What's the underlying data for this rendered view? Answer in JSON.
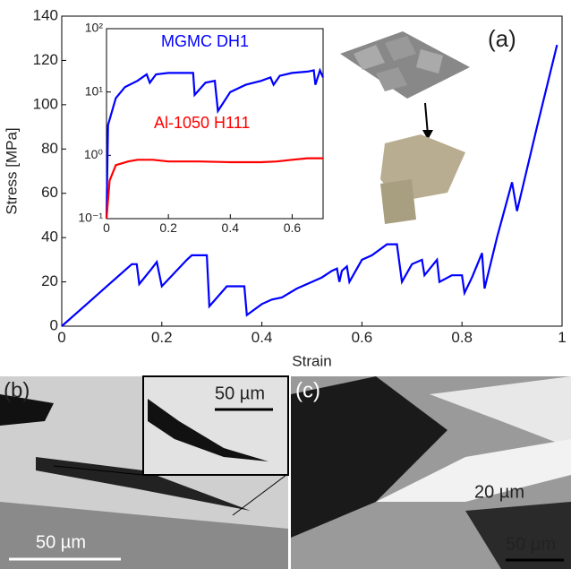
{
  "chart_data": [
    {
      "type": "line",
      "xlabel": "Strain",
      "ylabel": "Stress [MPa]",
      "annotation": "(a)",
      "xlim": [
        0,
        1
      ],
      "xticks": [
        0,
        0.2,
        0.4,
        0.6,
        0.8,
        1
      ],
      "ylim": [
        0,
        140
      ],
      "yticks": [
        0,
        20,
        40,
        60,
        80,
        100,
        120,
        140
      ],
      "series": [
        {
          "color": "#0000ff",
          "x": [
            0,
            0.05,
            0.1,
            0.14,
            0.15,
            0.155,
            0.18,
            0.19,
            0.2,
            0.25,
            0.26,
            0.29,
            0.295,
            0.33,
            0.365,
            0.37,
            0.4,
            0.42,
            0.44,
            0.47,
            0.5,
            0.52,
            0.54,
            0.55,
            0.555,
            0.56,
            0.57,
            0.575,
            0.6,
            0.62,
            0.65,
            0.67,
            0.68,
            0.7,
            0.72,
            0.725,
            0.75,
            0.755,
            0.78,
            0.8,
            0.805,
            0.82,
            0.84,
            0.845,
            0.87,
            0.9,
            0.91,
            0.95,
            0.99
          ],
          "values": [
            0,
            10,
            20,
            28,
            28,
            19,
            26,
            29,
            18,
            30,
            32,
            32,
            9,
            18,
            18,
            5,
            10,
            12,
            13,
            17,
            20,
            22,
            25,
            26,
            20,
            25,
            27,
            20,
            30,
            32,
            37,
            37,
            20,
            28,
            30,
            23,
            30,
            20,
            23,
            23,
            15,
            22,
            33,
            17,
            40,
            65,
            52,
            90,
            127
          ]
        }
      ]
    },
    {
      "type": "line",
      "log_y": true,
      "xlim": [
        0,
        0.7
      ],
      "xticks": [
        0,
        0.2,
        0.4,
        0.6
      ],
      "ylim": [
        0.1,
        100
      ],
      "yticks": [
        {
          "value": 0.1,
          "label": "10⁻¹"
        },
        {
          "value": 1,
          "label": "10⁰"
        },
        {
          "value": 10,
          "label": "10¹"
        },
        {
          "value": 100,
          "label": "10²"
        }
      ],
      "series": [
        {
          "name": "MGMC DH1",
          "color": "#0000ff",
          "x": [
            0,
            0.005,
            0.03,
            0.06,
            0.1,
            0.13,
            0.14,
            0.16,
            0.2,
            0.28,
            0.285,
            0.32,
            0.35,
            0.36,
            0.4,
            0.45,
            0.5,
            0.53,
            0.54,
            0.56,
            0.6,
            0.65,
            0.67,
            0.675,
            0.69,
            0.7
          ],
          "values": [
            0.1,
            3,
            8,
            12,
            15,
            19,
            14,
            19,
            20,
            20,
            9,
            14,
            15,
            5,
            10,
            13,
            15,
            17,
            13,
            18,
            20,
            21,
            22,
            13,
            22,
            17
          ]
        },
        {
          "name": "Al-1050 H111",
          "color": "#ff0000",
          "x": [
            0,
            0.01,
            0.03,
            0.07,
            0.1,
            0.15,
            0.2,
            0.3,
            0.4,
            0.5,
            0.55,
            0.6,
            0.65,
            0.7
          ],
          "values": [
            0.1,
            0.4,
            0.7,
            0.8,
            0.85,
            0.85,
            0.8,
            0.8,
            0.78,
            0.78,
            0.8,
            0.85,
            0.9,
            0.9
          ]
        }
      ]
    }
  ],
  "images": {
    "b_label": "(b)",
    "b_scale": "50 µm",
    "b_inset_scale": "50 µm",
    "c_label": "(c)",
    "c_gap": "20 µm",
    "c_scale": "50 µm"
  }
}
